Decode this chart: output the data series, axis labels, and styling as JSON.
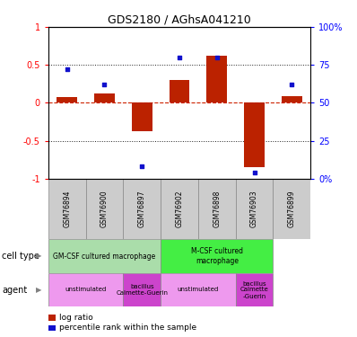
{
  "title": "GDS2180 / AGhsA041210",
  "samples": [
    "GSM76894",
    "GSM76900",
    "GSM76897",
    "GSM76902",
    "GSM76898",
    "GSM76903",
    "GSM76899"
  ],
  "log_ratio": [
    0.08,
    0.12,
    -0.38,
    0.3,
    0.62,
    -0.85,
    0.09
  ],
  "percentile": [
    0.72,
    0.62,
    0.08,
    0.8,
    0.8,
    0.04,
    0.62
  ],
  "ylim_left": [
    -1,
    1
  ],
  "ylim_right": [
    0,
    100
  ],
  "left_ticks": [
    -1,
    -0.5,
    0,
    0.5,
    1
  ],
  "right_ticks": [
    0,
    25,
    50,
    75,
    100
  ],
  "left_tick_labels": [
    "-1",
    "-0.5",
    "0",
    "0.5",
    "1"
  ],
  "right_tick_labels": [
    "0%",
    "25",
    "50",
    "75",
    "100%"
  ],
  "bar_color": "#bb2200",
  "dot_color": "#1111cc",
  "hline_color": "#cc2200",
  "dotline_color": "#222222",
  "cell_type_groups": [
    {
      "label": "GM-CSF cultured macrophage",
      "start": 0,
      "end": 3,
      "color": "#aaddaa"
    },
    {
      "label": "M-CSF cultured\nmacrophage",
      "start": 3,
      "end": 6,
      "color": "#44ee44"
    }
  ],
  "agent_groups": [
    {
      "label": "unstimulated",
      "start": 0,
      "end": 2,
      "color": "#ee99ee"
    },
    {
      "label": "bacillus\nCalmette-Guerin",
      "start": 2,
      "end": 3,
      "color": "#cc44cc"
    },
    {
      "label": "unstimulated",
      "start": 3,
      "end": 5,
      "color": "#ee99ee"
    },
    {
      "label": "bacillus\nCalmette\n-Guerin",
      "start": 5,
      "end": 6,
      "color": "#cc44cc"
    }
  ],
  "cell_type_label": "cell type",
  "agent_label": "agent",
  "legend_log_ratio": "log ratio",
  "legend_percentile": "percentile rank within the sample"
}
